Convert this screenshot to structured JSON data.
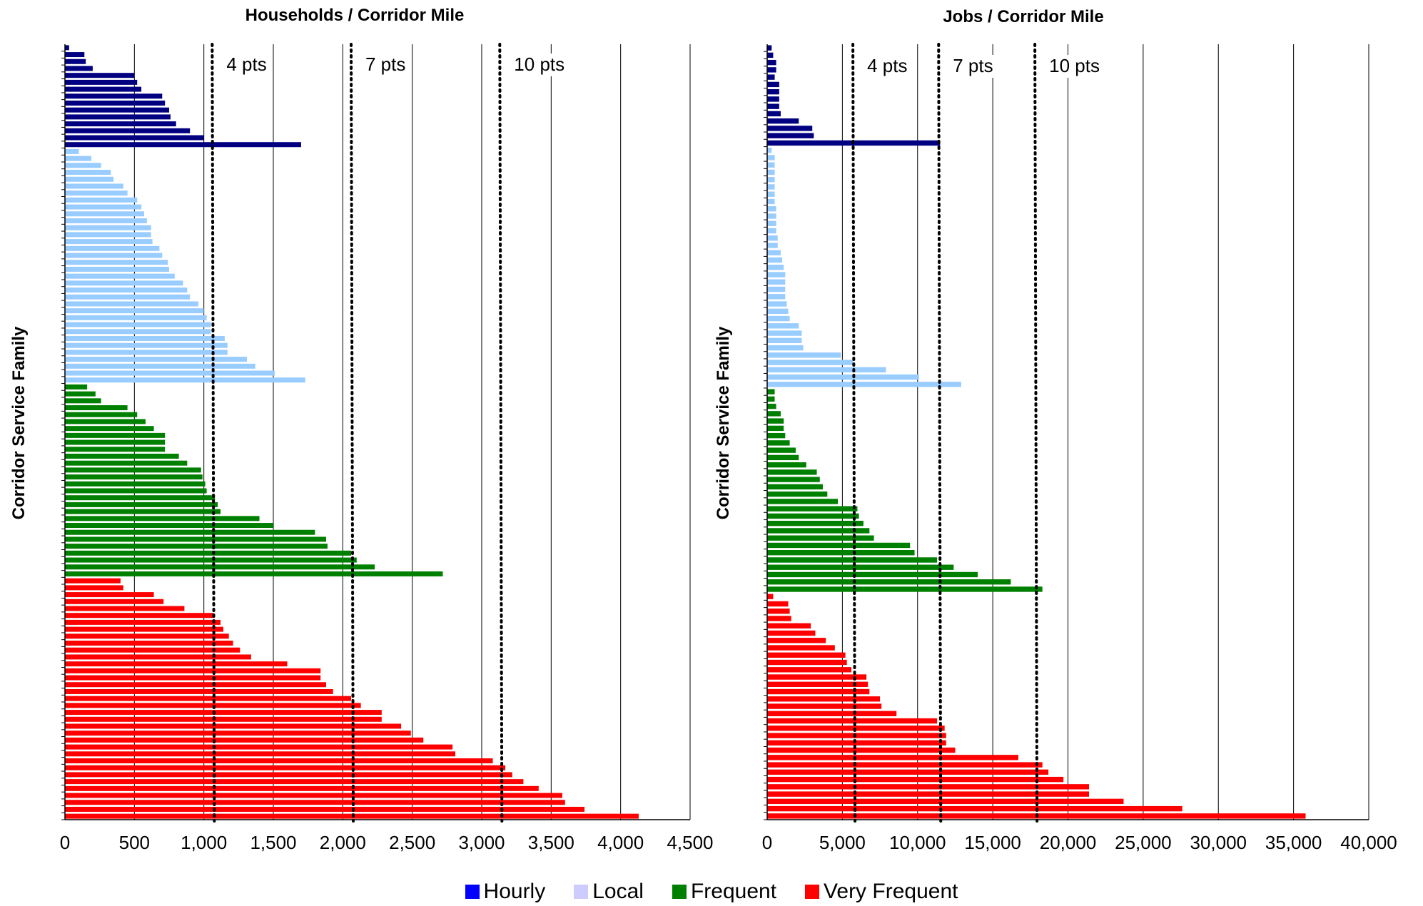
{
  "legend": [
    {
      "label": "Hourly",
      "color": "#0000ff"
    },
    {
      "label": "Local",
      "color": "#ccccff"
    },
    {
      "label": "Frequent",
      "color": "#008000"
    },
    {
      "label": "Very Frequent",
      "color": "#ff0000"
    }
  ],
  "chart_data": [
    {
      "type": "bar",
      "orientation": "horizontal",
      "title": "Households / Corridor Mile",
      "xlabel": "",
      "ylabel": "Corridor Service Family",
      "xlim": [
        0,
        4500
      ],
      "xticks": [
        "0",
        "500",
        "1,000",
        "1,500",
        "2,000",
        "2,500",
        "3,000",
        "3,500",
        "4,000",
        "4,500"
      ],
      "grid": "vertical",
      "thresholds": [
        {
          "label": "4 pts",
          "value": 1060
        },
        {
          "label": "7 pts",
          "value": 2060
        },
        {
          "label": "10 pts",
          "value": 3130
        }
      ],
      "groups": [
        {
          "name": "Hourly",
          "color": "#000080",
          "values": [
            30,
            140,
            150,
            200,
            500,
            520,
            550,
            700,
            720,
            750,
            760,
            800,
            900,
            1000,
            1700
          ]
        },
        {
          "name": "Local",
          "color": "#99ccff",
          "values": [
            100,
            190,
            260,
            330,
            350,
            420,
            450,
            520,
            550,
            570,
            590,
            620,
            620,
            630,
            680,
            700,
            740,
            750,
            790,
            850,
            880,
            900,
            960,
            1000,
            1020,
            1050,
            1050,
            1150,
            1170,
            1170,
            1310,
            1370,
            1510,
            1730
          ]
        },
        {
          "name": "Frequent",
          "color": "#008000",
          "values": [
            160,
            220,
            260,
            450,
            520,
            580,
            640,
            720,
            720,
            720,
            820,
            880,
            980,
            990,
            1010,
            1020,
            1080,
            1100,
            1120,
            1400,
            1500,
            1800,
            1880,
            1890,
            2060,
            2100,
            2230,
            2720
          ]
        },
        {
          "name": "Very Frequent",
          "color": "#ff0000",
          "values": [
            400,
            420,
            640,
            710,
            860,
            1070,
            1120,
            1140,
            1180,
            1210,
            1260,
            1340,
            1600,
            1840,
            1840,
            1880,
            1930,
            2060,
            2130,
            2280,
            2280,
            2420,
            2490,
            2580,
            2790,
            2810,
            3080,
            3170,
            3220,
            3300,
            3410,
            3580,
            3600,
            3740,
            4130
          ]
        }
      ]
    },
    {
      "type": "bar",
      "orientation": "horizontal",
      "title": "Jobs / Corridor Mile",
      "xlabel": "",
      "ylabel": "Corridor Service Family",
      "xlim": [
        0,
        40000
      ],
      "xticks": [
        "0",
        "5,000",
        "10,000",
        "15,000",
        "20,000",
        "25,000",
        "30,000",
        "35,000",
        "40,000"
      ],
      "grid": "vertical",
      "thresholds": [
        {
          "label": "4 pts",
          "value": 5700
        },
        {
          "label": "7 pts",
          "value": 11400
        },
        {
          "label": "10 pts",
          "value": 17800
        }
      ],
      "groups": [
        {
          "name": "Hourly",
          "color": "#000080",
          "values": [
            300,
            400,
            600,
            600,
            500,
            800,
            800,
            800,
            800,
            900,
            2100,
            3000,
            3100,
            11500
          ]
        },
        {
          "name": "Local",
          "color": "#99ccff",
          "values": [
            300,
            500,
            500,
            500,
            500,
            500,
            500,
            500,
            600,
            600,
            600,
            600,
            700,
            700,
            900,
            1000,
            1100,
            1200,
            1200,
            1200,
            1200,
            1300,
            1400,
            1500,
            2100,
            2300,
            2300,
            2400,
            4900,
            5700,
            7900,
            10100,
            12900
          ]
        },
        {
          "name": "Frequent",
          "color": "#008000",
          "values": [
            500,
            500,
            600,
            900,
            1100,
            1100,
            1200,
            1500,
            1900,
            2100,
            2600,
            3300,
            3500,
            3700,
            4000,
            4700,
            6000,
            6100,
            6400,
            6800,
            7100,
            9500,
            9800,
            11300,
            12400,
            14000,
            16200,
            18300
          ]
        },
        {
          "name": "Very Frequent",
          "color": "#ff0000",
          "values": [
            400,
            1400,
            1500,
            1600,
            2900,
            3200,
            3900,
            4500,
            5200,
            5300,
            5600,
            6600,
            6700,
            6800,
            7500,
            7600,
            8600,
            11300,
            11800,
            11900,
            11900,
            12500,
            16700,
            18300,
            18700,
            19700,
            21400,
            21400,
            23700,
            27600,
            35800
          ]
        }
      ]
    }
  ]
}
